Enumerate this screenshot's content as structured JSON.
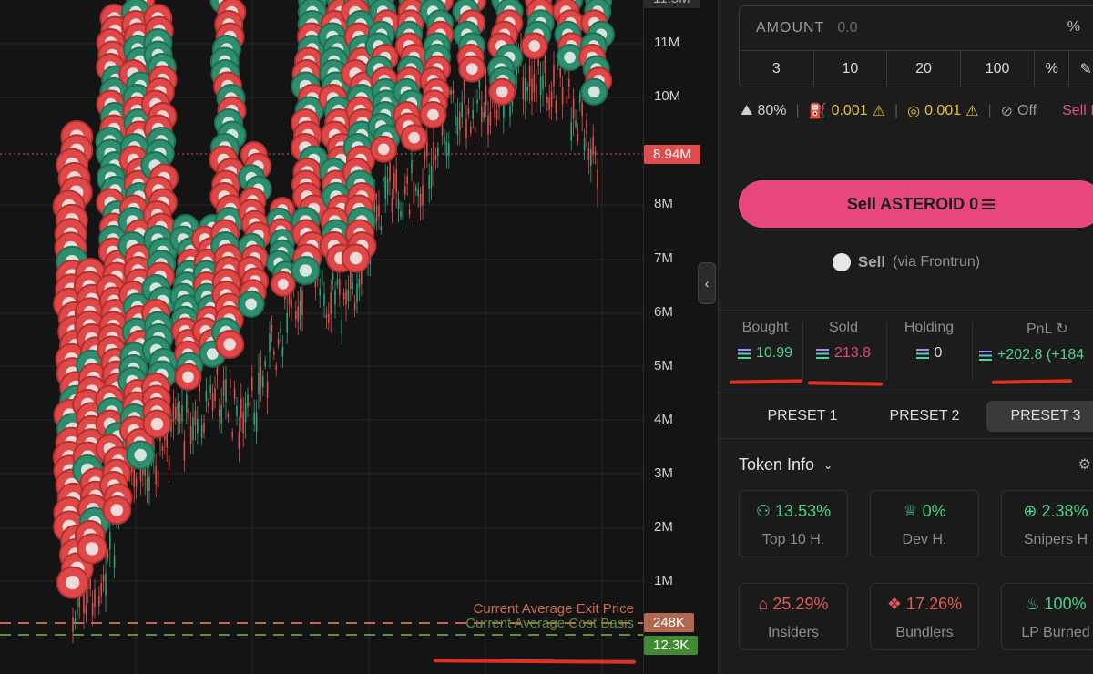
{
  "chart": {
    "price_ticks": [
      "11M",
      "10M",
      "8M",
      "7M",
      "6M",
      "5M",
      "4M",
      "3M",
      "2M",
      "1M"
    ],
    "top_tag": "11.5M",
    "last_price_tag": "8.94M",
    "exit_price_tag": "248K",
    "cost_basis_tag": "12.3K",
    "exit_label": "Current Average Exit Price",
    "cost_label": "Current Average Cost Basis",
    "colors": {
      "up": "#2fa37a",
      "down": "#e04b4b",
      "bubble_red": "#e04848",
      "bubble_green": "#2e8e6e",
      "exit_line": "#c96a4c",
      "cost_line": "#5f8f3b"
    }
  },
  "panel": {
    "amount_label": "AMOUNT",
    "amount_placeholder": "0.0",
    "amount_suffix": "%",
    "quick_amounts": [
      "3",
      "10",
      "20",
      "100",
      "%"
    ],
    "settings": {
      "slippage": "80%",
      "priority_fee": "0.001",
      "bribe": "0.001",
      "mev": "Off",
      "sell_init": "Sell In"
    },
    "sell_button": "Sell ASTEROID 0",
    "frontrun_label": "Sell",
    "frontrun_sub": "(via Frontrun)",
    "stats": {
      "bought_label": "Bought",
      "bought_value": "10.99",
      "sold_label": "Sold",
      "sold_value": "213.8",
      "holding_label": "Holding",
      "holding_value": "0",
      "pnl_label": "PnL",
      "pnl_value": "+202.8 (+184"
    },
    "presets": [
      "PRESET 1",
      "PRESET 2",
      "PRESET 3"
    ],
    "token_info_title": "Token Info",
    "token_info": [
      {
        "value": "13.53%",
        "label": "Top 10 H.",
        "icon": "person-icon"
      },
      {
        "value": "0%",
        "label": "Dev H.",
        "icon": "chef-hat-icon"
      },
      {
        "value": "2.38%",
        "label": "Snipers H",
        "icon": "crosshair-icon"
      },
      {
        "value": "25.29%",
        "label": "Insiders",
        "icon": "insider-icon"
      },
      {
        "value": "17.26%",
        "label": "Bundlers",
        "icon": "bundle-icon"
      },
      {
        "value": "100%",
        "label": "LP Burned",
        "icon": "flame-icon"
      }
    ]
  }
}
